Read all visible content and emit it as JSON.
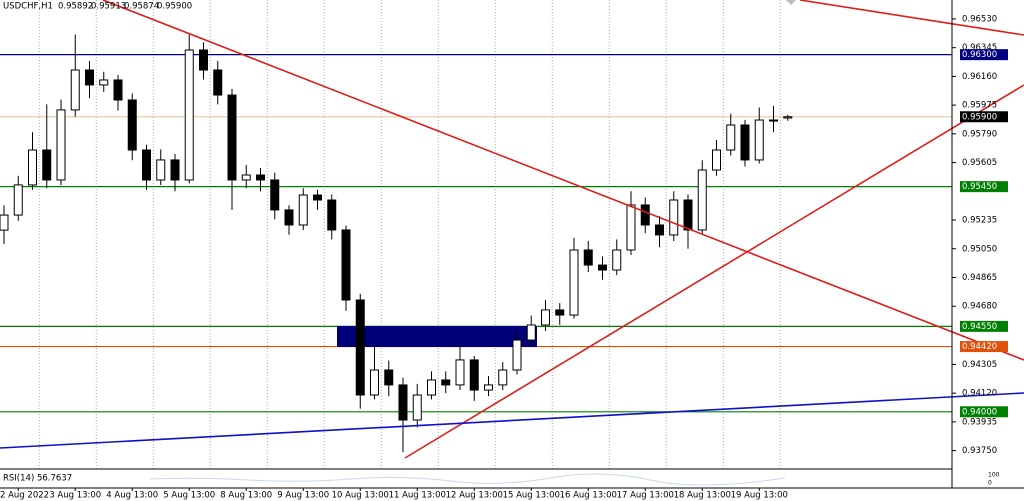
{
  "chart_data": {
    "type": "candlestick",
    "symbol": "USDCHF,H1",
    "header_values": [
      "0.95892",
      "0.95913",
      "0.95874",
      "0.95900"
    ],
    "categories": [
      null,
      "2 Aug 2022",
      null,
      null,
      null,
      "3 Aug 13:00",
      null,
      null,
      null,
      "4 Aug 13:00",
      null,
      null,
      null,
      "5 Aug 13:00",
      null,
      null,
      null,
      "8 Aug 13:00",
      null,
      null,
      null,
      "9 Aug 13:00",
      null,
      null,
      null,
      "10 Aug 13:00",
      null,
      null,
      null,
      "11 Aug 13:00",
      null,
      null,
      null,
      "12 Aug 13:00",
      null,
      null,
      null,
      "15 Aug 13:00",
      null,
      null,
      null,
      "16 Aug 13:00",
      null,
      null,
      null,
      "17 Aug 13:00",
      null,
      null,
      null,
      "18 Aug 13:00",
      null,
      null,
      null,
      "19 Aug 13:00",
      null,
      null
    ],
    "open": [
      0.9517,
      0.95267,
      0.95461,
      0.95686,
      0.95493,
      0.95944,
      0.96201,
      0.96105,
      0.96137,
      0.96008,
      0.95686,
      0.95493,
      0.95622,
      0.95493,
      0.9633,
      0.96201,
      0.9604,
      0.95493,
      0.95525,
      0.95493,
      0.953,
      0.95203,
      0.95396,
      0.95364,
      0.95171,
      0.9472,
      0.94108,
      0.94269,
      0.94173,
      0.93947,
      0.94108,
      0.94205,
      0.94173,
      0.94334,
      0.9414,
      0.94173,
      0.94269,
      0.94462,
      0.94559,
      0.94656,
      0.94623,
      0.95042,
      0.94945,
      0.94913,
      0.95042,
      0.95332,
      0.95203,
      0.95139,
      0.95364,
      0.95171,
      0.95557,
      0.95686,
      0.95847,
      0.95622,
      0.95879,
      0.95892
    ],
    "high": [
      0.9533,
      0.9552,
      0.958,
      0.9598,
      0.9601,
      0.9643,
      0.9626,
      0.9619,
      0.9617,
      0.9605,
      0.9572,
      0.9569,
      0.9566,
      0.9643,
      0.9638,
      0.9626,
      0.9608,
      0.9559,
      0.9557,
      0.9554,
      0.9533,
      0.9544,
      0.9543,
      0.954,
      0.952,
      0.9476,
      0.9443,
      0.9433,
      0.9422,
      0.9418,
      0.9426,
      0.9426,
      0.9443,
      0.9436,
      0.9423,
      0.9432,
      0.9452,
      0.9462,
      0.9472,
      0.947,
      0.9512,
      0.951,
      0.95,
      0.9511,
      0.9542,
      0.9538,
      0.9526,
      0.9542,
      0.954,
      0.9562,
      0.9575,
      0.9592,
      0.9588,
      0.9596,
      0.9597,
      0.95913
    ],
    "low": [
      0.9508,
      0.9523,
      0.9543,
      0.9544,
      0.9546,
      0.959,
      0.9602,
      0.9606,
      0.9594,
      0.9562,
      0.9543,
      0.9546,
      0.9542,
      0.9547,
      0.9614,
      0.9598,
      0.953,
      0.9544,
      0.9542,
      0.9524,
      0.9514,
      0.9517,
      0.953,
      0.9511,
      0.9465,
      0.9402,
      0.9408,
      0.941,
      0.9374,
      0.939,
      0.9408,
      0.9412,
      0.9414,
      0.9407,
      0.941,
      0.9414,
      0.9424,
      0.9442,
      0.9452,
      0.9456,
      0.946,
      0.949,
      0.9485,
      0.9488,
      0.9501,
      0.9515,
      0.9506,
      0.951,
      0.9505,
      0.9514,
      0.9552,
      0.9565,
      0.9558,
      0.956,
      0.958,
      0.95874
    ],
    "close": [
      0.95267,
      0.95461,
      0.95686,
      0.95493,
      0.95944,
      0.96201,
      0.96105,
      0.96137,
      0.96008,
      0.95686,
      0.95493,
      0.95622,
      0.95493,
      0.9633,
      0.96201,
      0.9604,
      0.95493,
      0.95525,
      0.95493,
      0.953,
      0.95203,
      0.95396,
      0.95364,
      0.95171,
      0.9472,
      0.94108,
      0.94269,
      0.94173,
      0.93947,
      0.94108,
      0.94205,
      0.94173,
      0.94334,
      0.9414,
      0.94173,
      0.94269,
      0.94462,
      0.94559,
      0.94656,
      0.94623,
      0.95042,
      0.94945,
      0.94913,
      0.95042,
      0.95332,
      0.95203,
      0.95139,
      0.95364,
      0.95171,
      0.95557,
      0.95686,
      0.95847,
      0.95622,
      0.95879,
      0.95879,
      0.959
    ],
    "up_color": "#ffffff",
    "down_color": "#000000",
    "ylim": [
      0.93638,
      0.96652
    ],
    "yticks": [
      {
        "value": 0.9653,
        "label": "0.96530"
      },
      {
        "value": 0.96345,
        "label": "0.96345"
      },
      {
        "value": 0.9616,
        "label": "0.96160"
      },
      {
        "value": 0.95975,
        "label": "0.95975"
      },
      {
        "value": 0.9579,
        "label": "0.95790"
      },
      {
        "value": 0.95605,
        "label": "0.95605"
      },
      {
        "value": 0.95235,
        "label": "0.95235"
      },
      {
        "value": 0.9505,
        "label": "0.95050"
      },
      {
        "value": 0.94865,
        "label": "0.94865"
      },
      {
        "value": 0.9468,
        "label": "0.94680"
      },
      {
        "value": 0.94305,
        "label": "0.94305"
      },
      {
        "value": 0.9412,
        "label": "0.94120"
      },
      {
        "value": 0.93935,
        "label": "0.93935"
      },
      {
        "value": 0.9375,
        "label": "0.93750"
      }
    ],
    "levels": [
      {
        "value": 0.963,
        "label": "0.96300",
        "color": "#000080"
      },
      {
        "value": 0.959,
        "label": "0.95900",
        "color": "#000000",
        "line_color": "#e8cfa8"
      },
      {
        "value": 0.9545,
        "label": "0.95450",
        "color": "#008000"
      },
      {
        "value": 0.9455,
        "label": "0.94550",
        "color": "#008000"
      },
      {
        "value": 0.9442,
        "label": "0.94420",
        "color": "#e0500a"
      },
      {
        "value": 0.94,
        "label": "0.94000",
        "color": "#008000"
      }
    ],
    "rsi_label": "RSI(14) 56.7637",
    "rsi_ticks": [
      "100",
      "0"
    ]
  }
}
